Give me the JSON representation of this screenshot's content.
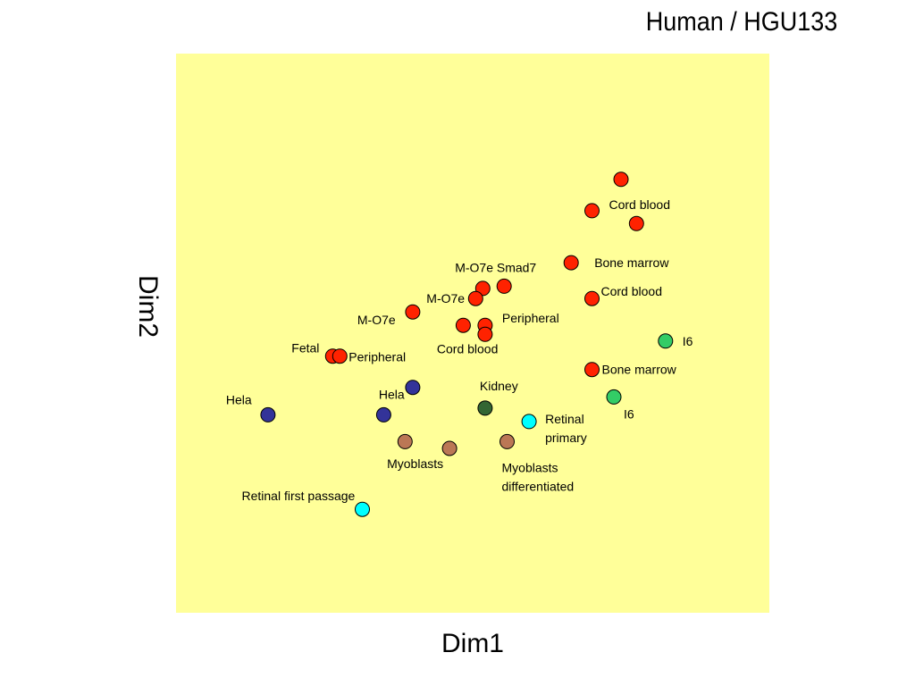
{
  "chart_data": {
    "type": "scatter",
    "title": "Human / HGU133",
    "xlabel": "Dim1",
    "ylabel": "Dim2",
    "xlim": [
      0,
      100
    ],
    "ylim": [
      0,
      100
    ],
    "grid": false,
    "plot_background": "#ffff99",
    "point_colors": {
      "blood": "#ff2200",
      "hela": "#333399",
      "kidney": "#336633",
      "retinal": "#00ffff",
      "myoblast": "#bb7755",
      "i6": "#33cc66"
    },
    "points": [
      {
        "group": "blood",
        "x": 75.0,
        "y": 77.5,
        "label": ""
      },
      {
        "group": "blood",
        "x": 70.1,
        "y": 71.9,
        "label": "Cord blood"
      },
      {
        "group": "blood",
        "x": 77.6,
        "y": 69.6,
        "label": ""
      },
      {
        "group": "blood",
        "x": 66.6,
        "y": 62.6,
        "label": "Bone marrow"
      },
      {
        "group": "blood",
        "x": 70.1,
        "y": 56.2,
        "label": "Cord blood"
      },
      {
        "group": "blood",
        "x": 55.3,
        "y": 58.4,
        "label": "M-O7e Smad7"
      },
      {
        "group": "blood",
        "x": 51.7,
        "y": 58.0,
        "label": ""
      },
      {
        "group": "blood",
        "x": 50.5,
        "y": 56.2,
        "label": "M-O7e"
      },
      {
        "group": "blood",
        "x": 39.9,
        "y": 53.8,
        "label": "M-O7e"
      },
      {
        "group": "blood",
        "x": 48.4,
        "y": 51.4,
        "label": ""
      },
      {
        "group": "blood",
        "x": 52.1,
        "y": 51.4,
        "label": "Peripheral"
      },
      {
        "group": "blood",
        "x": 52.1,
        "y": 49.8,
        "label": "Cord blood"
      },
      {
        "group": "blood",
        "x": 26.4,
        "y": 45.9,
        "label": "Fetal"
      },
      {
        "group": "blood",
        "x": 27.6,
        "y": 45.9,
        "label": "Peripheral"
      },
      {
        "group": "blood",
        "x": 70.1,
        "y": 43.5,
        "label": "Bone marrow"
      },
      {
        "group": "hela",
        "x": 15.5,
        "y": 35.4,
        "label": "Hela"
      },
      {
        "group": "hela",
        "x": 35.0,
        "y": 35.4,
        "label": ""
      },
      {
        "group": "hela",
        "x": 39.9,
        "y": 40.3,
        "label": "Hela"
      },
      {
        "group": "kidney",
        "x": 52.1,
        "y": 36.6,
        "label": "Kidney"
      },
      {
        "group": "retinal",
        "x": 59.5,
        "y": 34.2,
        "label": "Retinal primary"
      },
      {
        "group": "retinal",
        "x": 31.4,
        "y": 18.5,
        "label": "Retinal first passage"
      },
      {
        "group": "myoblast",
        "x": 38.6,
        "y": 30.6,
        "label": ""
      },
      {
        "group": "myoblast",
        "x": 46.1,
        "y": 29.4,
        "label": "Myoblasts"
      },
      {
        "group": "myoblast",
        "x": 55.8,
        "y": 30.6,
        "label": "Myoblasts differentiated"
      },
      {
        "group": "i6",
        "x": 82.5,
        "y": 48.6,
        "label": "I6"
      },
      {
        "group": "i6",
        "x": 73.8,
        "y": 38.6,
        "label": "I6"
      }
    ]
  }
}
